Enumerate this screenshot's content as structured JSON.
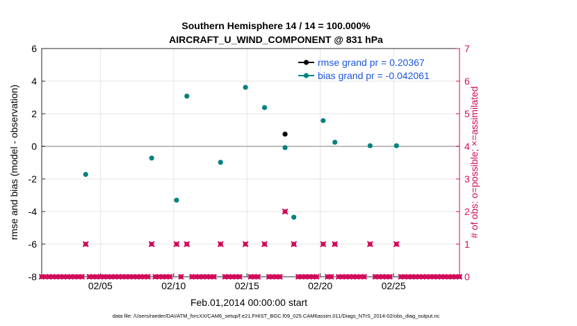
{
  "chart_data": {
    "type": "scatter",
    "title": "Southern Hemisphere 14 / 14 = 100.000%",
    "subtitle": "AIRCRAFT_U_WIND_COMPONENT @ 831 hPa",
    "xlabel": "Feb.01,2014 00:00:00 start",
    "ylabel_left": "rmse and bias (model - observation)",
    "ylabel_right": "# of obs: o=possible; ×=assimilated",
    "x_tick_labels": [
      "02/05",
      "02/10",
      "02/15",
      "02/20",
      "02/25"
    ],
    "x_tick_days": [
      5,
      10,
      15,
      20,
      25
    ],
    "xlim_days": [
      1,
      29.5
    ],
    "ylim_left": [
      -8,
      6
    ],
    "yticks_left": [
      -8,
      -6,
      -4,
      -2,
      0,
      2,
      4,
      6
    ],
    "ylim_right": [
      0,
      7
    ],
    "yticks_right": [
      0,
      1,
      2,
      3,
      4,
      5,
      6,
      7
    ],
    "zero_line": true,
    "grid": true,
    "legend_position": "top-right",
    "colors": {
      "rmse": "#000000",
      "bias": "#00827f",
      "obs": "#d10a5a",
      "legend_text": "#1a55e0",
      "grid": "#e3e3e3",
      "zero_line": "#bdbdbd"
    },
    "series": [
      {
        "name": "rmse grand pr = 0.20367",
        "axis": "left",
        "x_days": [
          17.6
        ],
        "y": [
          0.75
        ]
      },
      {
        "name": "bias grand pr = -0.042061",
        "axis": "left",
        "x_days": [
          4.0,
          8.5,
          10.2,
          10.9,
          13.2,
          14.9,
          16.2,
          17.6,
          18.2,
          20.2,
          21.0,
          23.4,
          25.2
        ],
        "y": [
          -1.72,
          -0.72,
          -3.3,
          3.08,
          -0.98,
          3.62,
          2.38,
          -0.08,
          -4.35,
          1.58,
          0.25,
          0.04,
          0.04
        ]
      },
      {
        "name": "obs possible",
        "axis": "right",
        "x_days": [
          4.0,
          8.5,
          10.2,
          10.9,
          13.2,
          14.9,
          16.2,
          17.6,
          18.2,
          20.2,
          21.0,
          23.4,
          25.2
        ],
        "y": [
          1,
          1,
          1,
          1,
          1,
          1,
          1,
          2,
          1,
          1,
          1,
          1,
          1
        ]
      },
      {
        "name": "obs assimilated",
        "axis": "right",
        "x_days": [
          4.0,
          8.5,
          10.2,
          10.9,
          13.2,
          14.9,
          16.2,
          17.6,
          18.2,
          20.2,
          21.0,
          23.4,
          25.2
        ],
        "y": [
          1,
          1,
          1,
          1,
          1,
          1,
          1,
          2,
          1,
          1,
          1,
          1,
          1
        ]
      }
    ],
    "zero_obs_step_days": 0.25
  },
  "footer_text": "data file: /Users/raeder/DAI/ATM_forcXX/CAM6_setup/f.e21.FHIST_BGC.f09_025.CAM6assim.011/Diags_NTrS_2014-02/obs_diag_output.nc"
}
